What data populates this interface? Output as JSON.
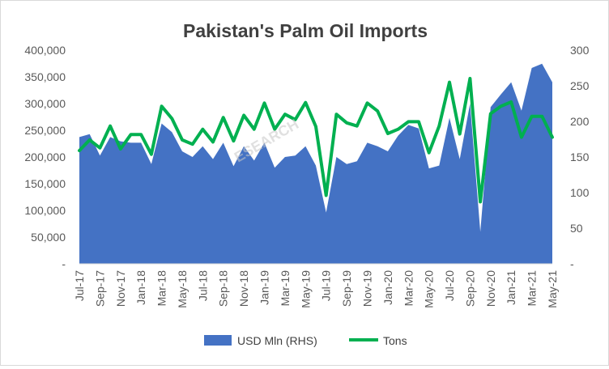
{
  "chart_data": {
    "type": "area",
    "title": "Pakistan's Palm Oil Imports",
    "watermark": "ESEARCH",
    "y_left": {
      "lim": [
        0,
        400000
      ],
      "ticks": [
        0,
        50000,
        100000,
        150000,
        200000,
        250000,
        300000,
        350000,
        400000
      ],
      "tick_labels": [
        "-",
        "50,000",
        "100,000",
        "150,000",
        "200,000",
        "250,000",
        "300,000",
        "350,000",
        "400,000"
      ]
    },
    "y_right": {
      "lim": [
        0,
        300
      ],
      "ticks": [
        0,
        50,
        100,
        150,
        200,
        250,
        300
      ],
      "tick_labels": [
        "-",
        "50",
        "100",
        "150",
        "200",
        "250",
        "300"
      ]
    },
    "x": [
      "Jul-17",
      "Aug-17",
      "Sep-17",
      "Oct-17",
      "Nov-17",
      "Dec-17",
      "Jan-18",
      "Feb-18",
      "Mar-18",
      "Apr-18",
      "May-18",
      "Jun-18",
      "Jul-18",
      "Aug-18",
      "Sep-18",
      "Oct-18",
      "Nov-18",
      "Dec-18",
      "Jan-19",
      "Feb-19",
      "Mar-19",
      "Apr-19",
      "May-19",
      "Jun-19",
      "Jul-19",
      "Aug-19",
      "Sep-19",
      "Oct-19",
      "Nov-19",
      "Dec-19",
      "Jan-20",
      "Feb-20",
      "Mar-20",
      "Apr-20",
      "May-20",
      "Jun-20",
      "Jul-20",
      "Aug-20",
      "Sep-20",
      "Oct-20",
      "Nov-20",
      "Dec-20",
      "Jan-21",
      "Feb-21",
      "Mar-21",
      "Apr-21",
      "May-21"
    ],
    "x_tick_labels": [
      "Jul-17",
      "Sep-17",
      "Nov-17",
      "Jan-18",
      "Mar-18",
      "May-18",
      "Jul-18",
      "Sep-18",
      "Nov-18",
      "Jan-19",
      "Mar-19",
      "May-19",
      "Jul-19",
      "Sep-19",
      "Nov-19",
      "Jan-20",
      "Mar-20",
      "May-20",
      "Jul-20",
      "Sep-20",
      "Nov-20",
      "Jan-21",
      "Mar-21",
      "May-21"
    ],
    "series": [
      {
        "name": "USD Mln (RHS)",
        "kind": "area",
        "axis": "right",
        "color": "#4472C4",
        "values": [
          178,
          182,
          152,
          178,
          172,
          170,
          170,
          140,
          197,
          185,
          158,
          150,
          165,
          147,
          170,
          137,
          165,
          145,
          170,
          135,
          150,
          152,
          165,
          138,
          72,
          150,
          140,
          144,
          170,
          165,
          158,
          180,
          195,
          190,
          134,
          138,
          205,
          147,
          225,
          45,
          220,
          238,
          255,
          215,
          275,
          281,
          255
        ]
      },
      {
        "name": "Tons",
        "kind": "line",
        "axis": "left",
        "color": "#00B050",
        "values": [
          212000,
          232000,
          217000,
          258000,
          215000,
          242000,
          242000,
          205000,
          295000,
          272000,
          232000,
          224000,
          252000,
          228000,
          274000,
          230000,
          278000,
          252000,
          301000,
          252000,
          280000,
          270000,
          302000,
          257000,
          128000,
          280000,
          264000,
          258000,
          301000,
          286000,
          244000,
          252000,
          266000,
          266000,
          208000,
          258000,
          340000,
          243000,
          347000,
          116000,
          281000,
          295000,
          303000,
          237000,
          276000,
          276000,
          237000
        ]
      }
    ],
    "legend": {
      "placement": "bottom",
      "entries": [
        "USD Mln (RHS)",
        "Tons"
      ]
    },
    "grid": false
  }
}
